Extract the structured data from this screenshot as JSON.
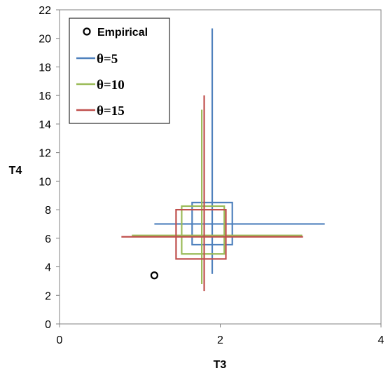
{
  "chart_data": {
    "type": "scatter",
    "title": "",
    "xlabel": "T3",
    "ylabel": "T4",
    "xlim": [
      0,
      4
    ],
    "ylim": [
      0,
      22
    ],
    "xticks": [
      "0",
      "2",
      "4"
    ],
    "yticks": [
      "0",
      "2",
      "4",
      "6",
      "8",
      "10",
      "12",
      "14",
      "16",
      "18",
      "20",
      "22"
    ],
    "grid": false,
    "legend": "top-left",
    "empirical": {
      "name": "Empirical",
      "x": 1.18,
      "y": 3.4,
      "color": "#000000"
    },
    "series": [
      {
        "name": "θ=5",
        "color": "#4f81bd",
        "center": [
          1.9,
          7.0
        ],
        "box_x": [
          1.65,
          2.15
        ],
        "box_y": [
          5.55,
          8.5
        ],
        "range_x": [
          1.18,
          3.3
        ],
        "range_y": [
          3.5,
          20.7
        ]
      },
      {
        "name": "θ=10",
        "color": "#9bbb59",
        "center": [
          1.77,
          6.2
        ],
        "box_x": [
          1.52,
          2.05
        ],
        "box_y": [
          4.9,
          8.25
        ],
        "range_x": [
          0.9,
          3.02
        ],
        "range_y": [
          2.8,
          15.0
        ]
      },
      {
        "name": "θ=15",
        "color": "#c0504d",
        "center": [
          1.8,
          6.1
        ],
        "box_x": [
          1.45,
          2.07
        ],
        "box_y": [
          4.55,
          8.0
        ],
        "range_x": [
          0.77,
          3.03
        ],
        "range_y": [
          2.3,
          16.0
        ]
      }
    ]
  }
}
